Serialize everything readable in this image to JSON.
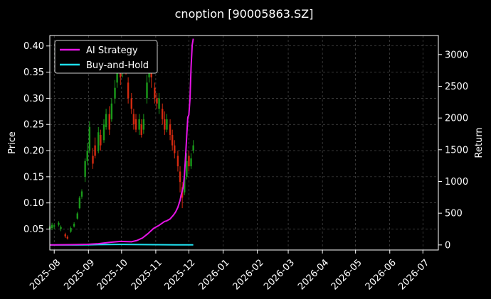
{
  "chart_data": {
    "type": "line",
    "title": "cnoption [90005863.SZ]",
    "ylabel_left": "Price",
    "ylabel_right": "Return",
    "xlabel": "",
    "x_tick_labels": [
      "2025-08",
      "2025-09",
      "2025-10",
      "2025-11",
      "2025-12",
      "2026-01",
      "2026-02",
      "2026-03",
      "2026-04",
      "2026-05",
      "2026-06",
      "2026-07"
    ],
    "xlim_days": [
      -4,
      348
    ],
    "ylim_left": [
      0.01,
      0.42
    ],
    "y_ticks_left": [
      "0.05",
      "0.10",
      "0.15",
      "0.20",
      "0.25",
      "0.30",
      "0.35",
      "0.40"
    ],
    "ylim_right": [
      -80,
      3300
    ],
    "y_ticks_right": [
      "0",
      "500",
      "1000",
      "1500",
      "2000",
      "2500",
      "3000"
    ],
    "grid": true,
    "legend_position": "top-left",
    "colors": {
      "ai_strategy": "#e614e6",
      "buy_and_hold": "#1ee0f0",
      "candle_up": "#1a9a1a",
      "candle_down": "#d42a10",
      "background": "#000000"
    },
    "candles": [
      [
        -4,
        0.05,
        0.055,
        0.045,
        0.058
      ],
      [
        -2,
        0.052,
        0.058,
        0.048,
        0.062
      ],
      [
        0,
        0.055,
        0.057,
        0.05,
        0.06
      ],
      [
        4,
        0.058,
        0.062,
        0.055,
        0.065
      ],
      [
        6,
        0.05,
        0.054,
        0.046,
        0.057
      ],
      [
        10,
        0.04,
        0.036,
        0.033,
        0.043
      ],
      [
        12,
        0.035,
        0.032,
        0.03,
        0.038
      ],
      [
        15,
        0.045,
        0.052,
        0.043,
        0.055
      ],
      [
        18,
        0.055,
        0.06,
        0.053,
        0.063
      ],
      [
        21,
        0.07,
        0.08,
        0.068,
        0.083
      ],
      [
        23,
        0.09,
        0.11,
        0.088,
        0.113
      ],
      [
        25,
        0.112,
        0.122,
        0.108,
        0.126
      ],
      [
        28,
        0.15,
        0.18,
        0.14,
        0.185
      ],
      [
        30,
        0.18,
        0.2,
        0.172,
        0.215
      ],
      [
        32,
        0.2,
        0.245,
        0.195,
        0.256
      ],
      [
        35,
        0.19,
        0.175,
        0.165,
        0.205
      ],
      [
        37,
        0.21,
        0.19,
        0.185,
        0.225
      ],
      [
        40,
        0.2,
        0.235,
        0.195,
        0.245
      ],
      [
        42,
        0.23,
        0.21,
        0.2,
        0.24
      ],
      [
        45,
        0.22,
        0.25,
        0.215,
        0.26
      ],
      [
        47,
        0.245,
        0.27,
        0.24,
        0.28
      ],
      [
        50,
        0.27,
        0.24,
        0.23,
        0.285
      ],
      [
        52,
        0.26,
        0.29,
        0.255,
        0.3
      ],
      [
        55,
        0.3,
        0.32,
        0.29,
        0.335
      ],
      [
        57,
        0.33,
        0.36,
        0.32,
        0.37
      ],
      [
        60,
        0.36,
        0.34,
        0.325,
        0.375
      ],
      [
        62,
        0.35,
        0.38,
        0.34,
        0.39
      ],
      [
        65,
        0.38,
        0.36,
        0.345,
        0.395
      ],
      [
        67,
        0.33,
        0.3,
        0.29,
        0.34
      ],
      [
        70,
        0.3,
        0.28,
        0.27,
        0.31
      ],
      [
        72,
        0.27,
        0.25,
        0.24,
        0.28
      ],
      [
        74,
        0.26,
        0.24,
        0.235,
        0.27
      ],
      [
        77,
        0.24,
        0.26,
        0.23,
        0.27
      ],
      [
        79,
        0.25,
        0.23,
        0.225,
        0.26
      ],
      [
        81,
        0.24,
        0.26,
        0.232,
        0.27
      ],
      [
        84,
        0.3,
        0.33,
        0.29,
        0.345
      ],
      [
        86,
        0.34,
        0.37,
        0.33,
        0.385
      ],
      [
        88,
        0.36,
        0.34,
        0.32,
        0.37
      ],
      [
        91,
        0.32,
        0.3,
        0.29,
        0.33
      ],
      [
        93,
        0.3,
        0.29,
        0.28,
        0.31
      ],
      [
        95,
        0.28,
        0.3,
        0.27,
        0.31
      ],
      [
        98,
        0.28,
        0.26,
        0.25,
        0.29
      ],
      [
        100,
        0.26,
        0.24,
        0.23,
        0.275
      ],
      [
        102,
        0.24,
        0.26,
        0.235,
        0.27
      ],
      [
        105,
        0.25,
        0.23,
        0.22,
        0.26
      ],
      [
        107,
        0.23,
        0.21,
        0.2,
        0.24
      ],
      [
        109,
        0.21,
        0.195,
        0.185,
        0.22
      ],
      [
        112,
        0.19,
        0.17,
        0.16,
        0.2
      ],
      [
        114,
        0.16,
        0.14,
        0.12,
        0.17
      ],
      [
        116,
        0.13,
        0.11,
        0.09,
        0.14
      ],
      [
        118,
        0.12,
        0.15,
        0.115,
        0.16
      ],
      [
        120,
        0.15,
        0.18,
        0.145,
        0.195
      ],
      [
        122,
        0.19,
        0.17,
        0.16,
        0.2
      ],
      [
        124,
        0.17,
        0.185,
        0.165,
        0.195
      ],
      [
        126,
        0.2,
        0.21,
        0.195,
        0.22
      ]
    ],
    "series": [
      {
        "name": "AI Strategy",
        "x_days": [
          -4,
          20,
          30,
          40,
          50,
          60,
          70,
          75,
          80,
          85,
          90,
          95,
          100,
          102,
          105,
          108,
          110,
          112,
          114,
          115,
          117,
          118,
          119,
          120,
          121,
          122,
          123,
          124,
          125,
          126
        ],
        "values": [
          0,
          5,
          10,
          20,
          40,
          55,
          50,
          70,
          110,
          180,
          260,
          310,
          370,
          380,
          410,
          470,
          520,
          590,
          700,
          790,
          920,
          1100,
          1400,
          1700,
          2010,
          2050,
          2300,
          2800,
          3150,
          3250
        ]
      },
      {
        "name": "Buy-and-Hold",
        "x_days": [
          -4,
          20,
          40,
          60,
          80,
          100,
          110,
          120,
          126
        ],
        "values": [
          0,
          0,
          5,
          8,
          5,
          3,
          2,
          2,
          2
        ]
      }
    ]
  }
}
